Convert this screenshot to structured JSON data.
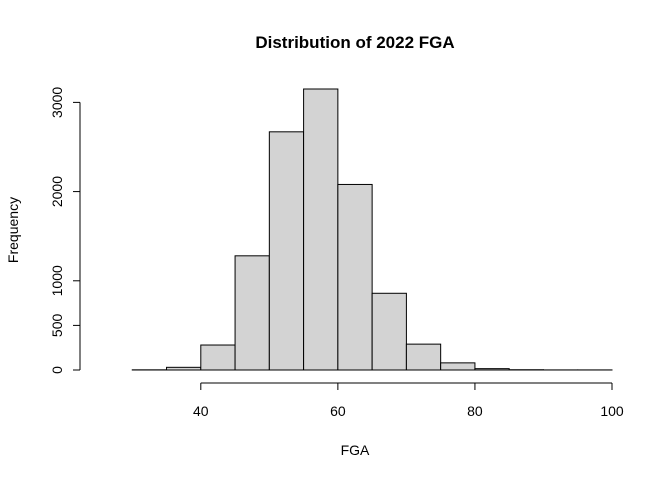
{
  "chart_data": {
    "type": "histogram",
    "title": "Distribution of 2022 FGA",
    "xlabel": "FGA",
    "ylabel": "Frequency",
    "bins": [
      {
        "x0": 25,
        "x1": 30,
        "count": 0
      },
      {
        "x0": 30,
        "x1": 35,
        "count": 2
      },
      {
        "x0": 35,
        "x1": 40,
        "count": 30
      },
      {
        "x0": 40,
        "x1": 45,
        "count": 280
      },
      {
        "x0": 45,
        "x1": 50,
        "count": 1280
      },
      {
        "x0": 50,
        "x1": 55,
        "count": 2670
      },
      {
        "x0": 55,
        "x1": 60,
        "count": 3150
      },
      {
        "x0": 60,
        "x1": 65,
        "count": 2080
      },
      {
        "x0": 65,
        "x1": 70,
        "count": 860
      },
      {
        "x0": 70,
        "x1": 75,
        "count": 290
      },
      {
        "x0": 75,
        "x1": 80,
        "count": 80
      },
      {
        "x0": 80,
        "x1": 85,
        "count": 15
      },
      {
        "x0": 85,
        "x1": 90,
        "count": 3
      },
      {
        "x0": 90,
        "x1": 95,
        "count": 1
      },
      {
        "x0": 95,
        "x1": 100,
        "count": 1
      }
    ],
    "xlim": [
      25,
      100
    ],
    "ylim": [
      0,
      3150
    ],
    "x_ticks": [
      40,
      60,
      80,
      100
    ],
    "y_ticks": [
      0,
      500,
      1000,
      2000,
      3000
    ],
    "grid": false,
    "colors": {
      "bar_fill": "#d3d3d3",
      "bar_stroke": "#000000",
      "axis": "#000000"
    }
  }
}
